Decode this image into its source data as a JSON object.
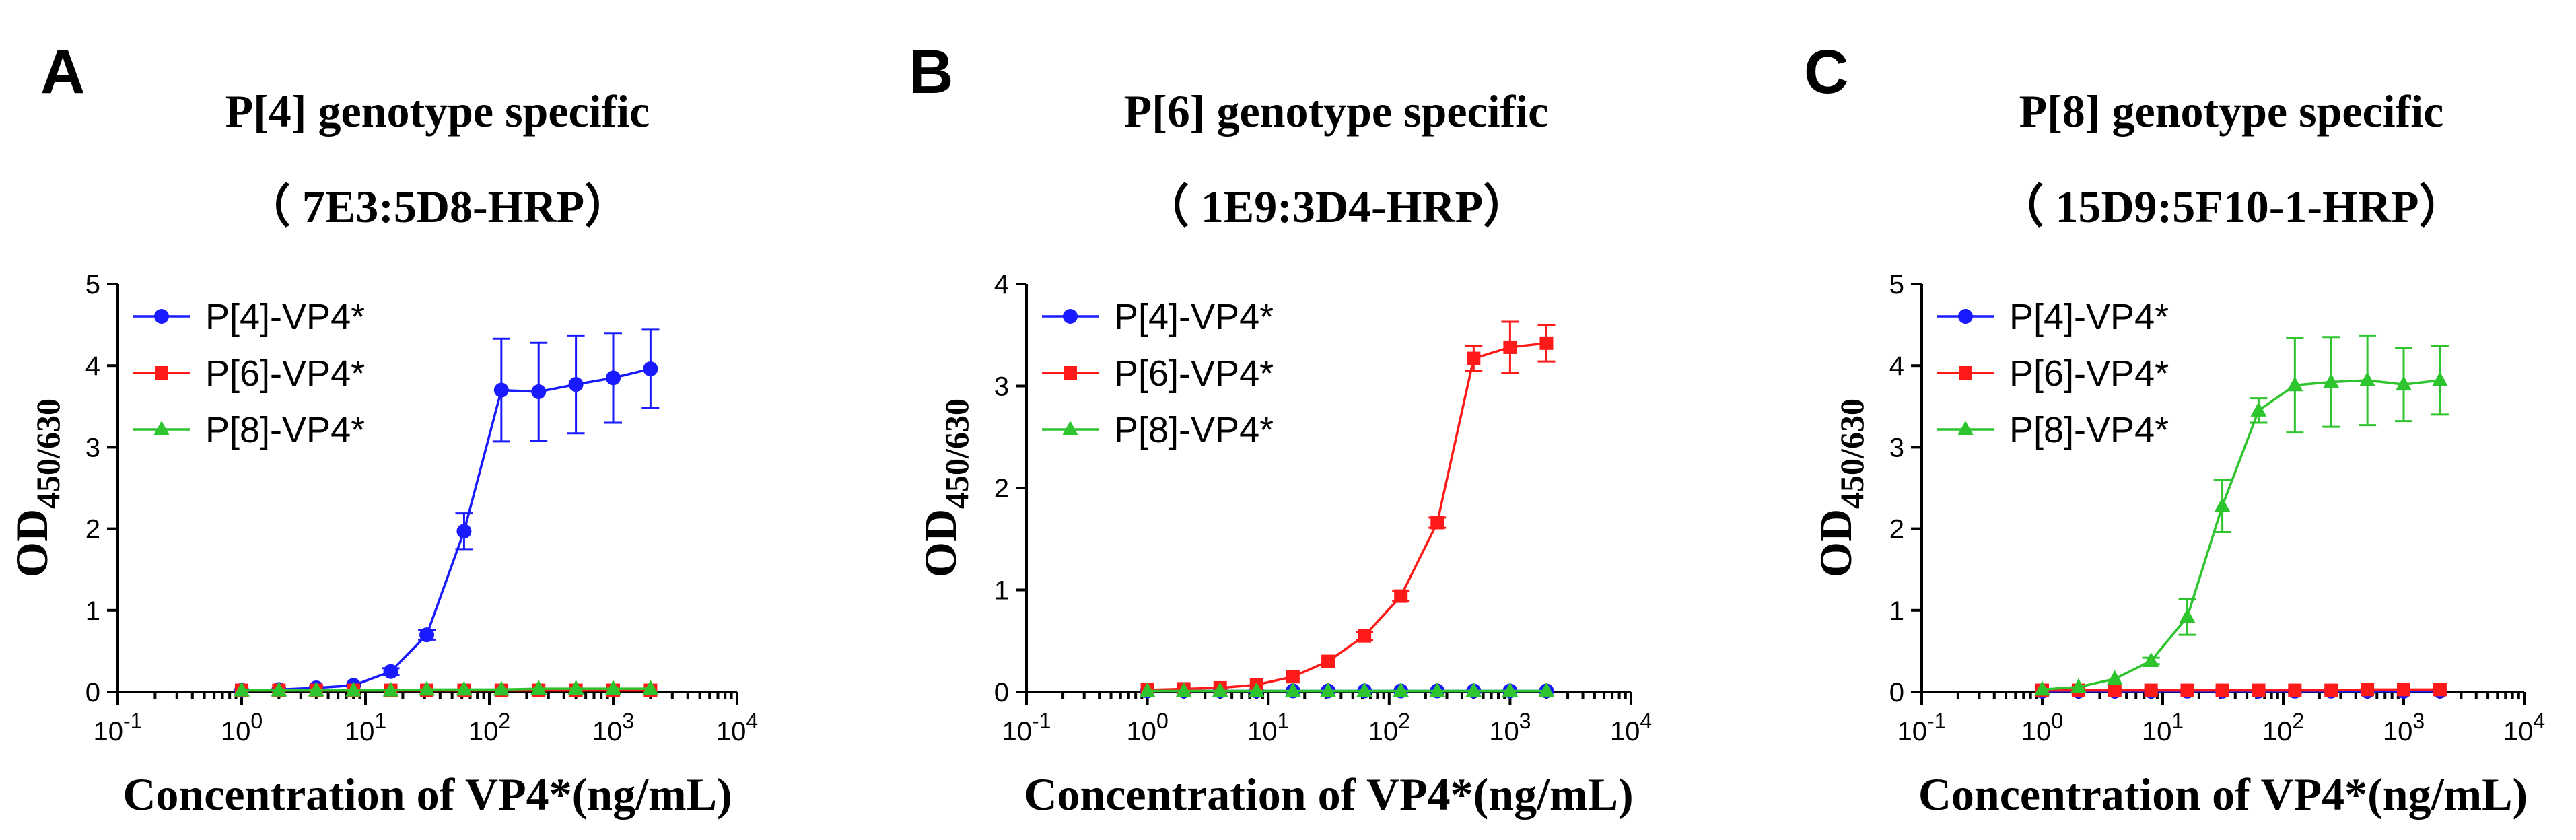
{
  "chart_data": [
    {
      "type": "line",
      "panel": "A",
      "title": "P[4] genotype specific",
      "subtitle": "（ 7E3:5D8-HRP）",
      "xlabel": "Concentration of VP4*(ng/mL)",
      "ylabel_main": "OD",
      "ylabel_sub": "450/630",
      "xscale": "log",
      "xlim": [
        0.1,
        10000
      ],
      "ylim": [
        0,
        5
      ],
      "yticks": [
        0,
        1,
        2,
        3,
        4,
        5
      ],
      "xtick_labels": [
        {
          "base": "10",
          "exp": "-1"
        },
        {
          "base": "10",
          "exp": "0"
        },
        {
          "base": "10",
          "exp": "1"
        },
        {
          "base": "10",
          "exp": "2"
        },
        {
          "base": "10",
          "exp": "3"
        },
        {
          "base": "10",
          "exp": "4"
        }
      ],
      "legend_position": "top-left",
      "x": [
        1,
        2,
        4,
        8,
        16,
        31.25,
        62.5,
        125,
        250,
        500,
        1000,
        2000
      ],
      "series": [
        {
          "name": "P[4]-VP4*",
          "color": "#1a1aff",
          "marker": "circle",
          "values": [
            0.02,
            0.03,
            0.05,
            0.08,
            0.25,
            0.7,
            1.97,
            3.7,
            3.68,
            3.77,
            3.85,
            3.96
          ],
          "errors": [
            0.01,
            0.01,
            0.01,
            0.02,
            0.04,
            0.06,
            0.22,
            0.63,
            0.6,
            0.6,
            0.55,
            0.48
          ]
        },
        {
          "name": "P[6]-VP4*",
          "color": "#ff1a1a",
          "marker": "square",
          "values": [
            0.02,
            0.02,
            0.02,
            0.02,
            0.02,
            0.02,
            0.02,
            0.02,
            0.02,
            0.02,
            0.02,
            0.02
          ],
          "errors": [
            0,
            0,
            0,
            0,
            0,
            0,
            0,
            0,
            0,
            0,
            0,
            0
          ]
        },
        {
          "name": "P[8]-VP4*",
          "color": "#2ec42e",
          "marker": "triangle",
          "values": [
            0.02,
            0.02,
            0.02,
            0.02,
            0.02,
            0.03,
            0.03,
            0.03,
            0.04,
            0.04,
            0.04,
            0.04
          ],
          "errors": [
            0,
            0,
            0,
            0,
            0,
            0,
            0,
            0,
            0,
            0,
            0,
            0
          ]
        }
      ]
    },
    {
      "type": "line",
      "panel": "B",
      "title": "P[6] genotype specific",
      "subtitle": "（ 1E9:3D4-HRP）",
      "xlabel": "Concentration of VP4*(ng/mL)",
      "ylabel_main": "OD",
      "ylabel_sub": "450/630",
      "xscale": "log",
      "xlim": [
        0.1,
        10000
      ],
      "ylim": [
        0,
        4
      ],
      "yticks": [
        0,
        1,
        2,
        3,
        4
      ],
      "xtick_labels": [
        {
          "base": "10",
          "exp": "-1"
        },
        {
          "base": "10",
          "exp": "0"
        },
        {
          "base": "10",
          "exp": "1"
        },
        {
          "base": "10",
          "exp": "2"
        },
        {
          "base": "10",
          "exp": "3"
        },
        {
          "base": "10",
          "exp": "4"
        }
      ],
      "legend_position": "top-left",
      "x": [
        1,
        2,
        4,
        8,
        16,
        31.25,
        62.5,
        125,
        250,
        500,
        1000,
        2000
      ],
      "series": [
        {
          "name": "P[4]-VP4*",
          "color": "#1a1aff",
          "marker": "circle",
          "values": [
            0.01,
            0.01,
            0.01,
            0.01,
            0.01,
            0.01,
            0.01,
            0.01,
            0.01,
            0.01,
            0.01,
            0.01
          ],
          "errors": [
            0,
            0,
            0,
            0,
            0,
            0,
            0,
            0,
            0,
            0,
            0,
            0
          ]
        },
        {
          "name": "P[6]-VP4*",
          "color": "#ff1a1a",
          "marker": "square",
          "values": [
            0.02,
            0.03,
            0.04,
            0.07,
            0.15,
            0.3,
            0.55,
            0.94,
            1.66,
            3.27,
            3.38,
            3.42
          ],
          "errors": [
            0.01,
            0.01,
            0.01,
            0.01,
            0.02,
            0.03,
            0.04,
            0.05,
            0.05,
            0.12,
            0.25,
            0.18
          ]
        },
        {
          "name": "P[8]-VP4*",
          "color": "#2ec42e",
          "marker": "triangle",
          "values": [
            0.01,
            0.01,
            0.01,
            0.01,
            0.01,
            0.01,
            0.01,
            0.01,
            0.01,
            0.01,
            0.01,
            0.01
          ],
          "errors": [
            0,
            0,
            0,
            0,
            0,
            0,
            0,
            0,
            0,
            0,
            0,
            0
          ]
        }
      ]
    },
    {
      "type": "line",
      "panel": "C",
      "title": "P[8] genotype specific",
      "subtitle": "（ 15D9:5F10-1-HRP）",
      "xlabel": "Concentration of VP4*(ng/mL)",
      "ylabel_main": "OD",
      "ylabel_sub": "450/630",
      "xscale": "log",
      "xlim": [
        0.1,
        10000
      ],
      "ylim": [
        0,
        5
      ],
      "yticks": [
        0,
        1,
        2,
        3,
        4,
        5
      ],
      "xtick_labels": [
        {
          "base": "10",
          "exp": "-1"
        },
        {
          "base": "10",
          "exp": "0"
        },
        {
          "base": "10",
          "exp": "1"
        },
        {
          "base": "10",
          "exp": "2"
        },
        {
          "base": "10",
          "exp": "3"
        },
        {
          "base": "10",
          "exp": "4"
        }
      ],
      "legend_position": "top-left",
      "x": [
        1,
        2,
        4,
        8,
        16,
        31.25,
        62.5,
        125,
        250,
        500,
        1000,
        2000
      ],
      "series": [
        {
          "name": "P[4]-VP4*",
          "color": "#1a1aff",
          "marker": "circle",
          "values": [
            0.01,
            0.01,
            0.01,
            0.01,
            0.01,
            0.01,
            0.01,
            0.01,
            0.01,
            0.01,
            0.01,
            0.01
          ],
          "errors": [
            0,
            0,
            0,
            0,
            0,
            0,
            0,
            0,
            0,
            0,
            0,
            0
          ]
        },
        {
          "name": "P[6]-VP4*",
          "color": "#ff1a1a",
          "marker": "square",
          "values": [
            0.02,
            0.02,
            0.02,
            0.02,
            0.02,
            0.02,
            0.02,
            0.02,
            0.02,
            0.03,
            0.03,
            0.03
          ],
          "errors": [
            0,
            0,
            0,
            0,
            0,
            0,
            0,
            0,
            0,
            0,
            0,
            0
          ]
        },
        {
          "name": "P[8]-VP4*",
          "color": "#2ec42e",
          "marker": "triangle",
          "values": [
            0.03,
            0.06,
            0.16,
            0.38,
            0.92,
            2.28,
            3.45,
            3.76,
            3.8,
            3.82,
            3.77,
            3.82
          ],
          "errors": [
            0.01,
            0.01,
            0.02,
            0.04,
            0.22,
            0.32,
            0.15,
            0.58,
            0.55,
            0.55,
            0.45,
            0.42
          ]
        }
      ]
    }
  ]
}
